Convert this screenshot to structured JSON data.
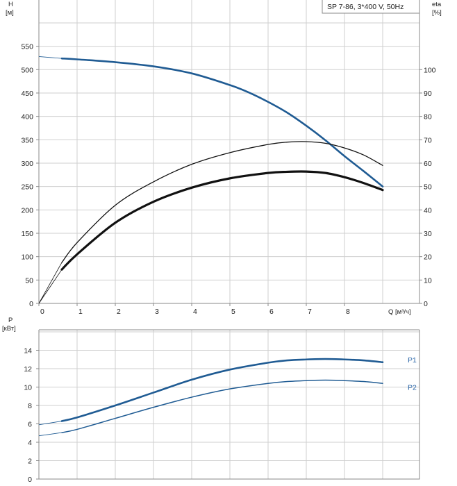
{
  "colors": {
    "head_curve": "#1f5b93",
    "eta_curve": "#111111",
    "power_curve": "#1f5b93",
    "series_label": "#2a66a8",
    "grid": "#cfcfcf",
    "frame": "#8a8a8a"
  },
  "chart_data": [
    {
      "type": "line",
      "title": "SP 7-86, 3*400 V, 50Hz",
      "xlabel": "Q [м³/ч]",
      "ylabel": "H\n[м]",
      "y2label": "eta\n[%]",
      "xlim": [
        0,
        9.3
      ],
      "ylim": [
        0,
        600
      ],
      "y2lim": [
        0,
        120
      ],
      "grid": true,
      "x_ticks": [
        "0",
        "1",
        "2",
        "3",
        "4",
        "5",
        "6",
        "7",
        "8"
      ],
      "y_ticks": [
        "0",
        "50",
        "100",
        "150",
        "200",
        "250",
        "300",
        "350",
        "400",
        "450",
        "500",
        "550"
      ],
      "y2_ticks": [
        "0",
        "10",
        "20",
        "30",
        "40",
        "50",
        "60",
        "70",
        "80",
        "90",
        "100"
      ],
      "series": [
        {
          "axis": "left",
          "style": "head",
          "x": [
            0,
            0.6,
            1,
            2,
            3,
            4,
            5,
            5.5,
            6,
            6.5,
            7,
            7.5,
            8,
            8.5,
            9
          ],
          "y": [
            528,
            524,
            522,
            516,
            507,
            492,
            467,
            451,
            431,
            408,
            380,
            349,
            315,
            283,
            250
          ],
          "values_precision": "estimated"
        },
        {
          "axis": "right",
          "style": "eta_thin",
          "x": [
            0,
            0.6,
            1,
            2,
            3,
            4,
            5,
            6,
            6.5,
            7,
            7.5,
            8,
            8.5,
            9
          ],
          "y": [
            0,
            17.5,
            26,
            42,
            52,
            59.5,
            64.5,
            68,
            69,
            69.2,
            68.5,
            66.5,
            63.5,
            59
          ],
          "values_precision": "estimated"
        },
        {
          "axis": "right",
          "style": "eta_thick",
          "x": [
            0,
            0.6,
            1,
            2,
            3,
            4,
            5,
            6,
            6.5,
            7,
            7.5,
            8,
            8.5,
            9
          ],
          "y": [
            0,
            14.5,
            21,
            34.5,
            43.5,
            49.5,
            53.5,
            55.8,
            56.3,
            56.4,
            55.8,
            54,
            51.5,
            48.5
          ],
          "values_precision": "estimated"
        }
      ]
    },
    {
      "type": "line",
      "xlabel": "",
      "ylabel": "P\n[кВт]",
      "xlim": [
        0,
        9.3
      ],
      "ylim": [
        0,
        16
      ],
      "grid": true,
      "y_ticks": [
        "0",
        "2",
        "4",
        "6",
        "8",
        "10",
        "12",
        "14"
      ],
      "series": [
        {
          "name": "P1",
          "style": "p1",
          "x": [
            0,
            0.6,
            1,
            2,
            3,
            4,
            5,
            6,
            6.5,
            7,
            7.5,
            8,
            8.5,
            9
          ],
          "y": [
            5.9,
            6.3,
            6.7,
            8.0,
            9.4,
            10.8,
            11.9,
            12.65,
            12.9,
            13.0,
            13.05,
            13.0,
            12.9,
            12.7
          ],
          "values_precision": "estimated"
        },
        {
          "name": "P2",
          "style": "p2",
          "x": [
            0,
            0.6,
            1,
            2,
            3,
            4,
            5,
            6,
            6.5,
            7,
            7.5,
            8,
            8.5,
            9
          ],
          "y": [
            4.7,
            5.05,
            5.4,
            6.6,
            7.8,
            8.9,
            9.8,
            10.4,
            10.6,
            10.7,
            10.75,
            10.7,
            10.6,
            10.4
          ],
          "values_precision": "estimated"
        }
      ]
    }
  ]
}
